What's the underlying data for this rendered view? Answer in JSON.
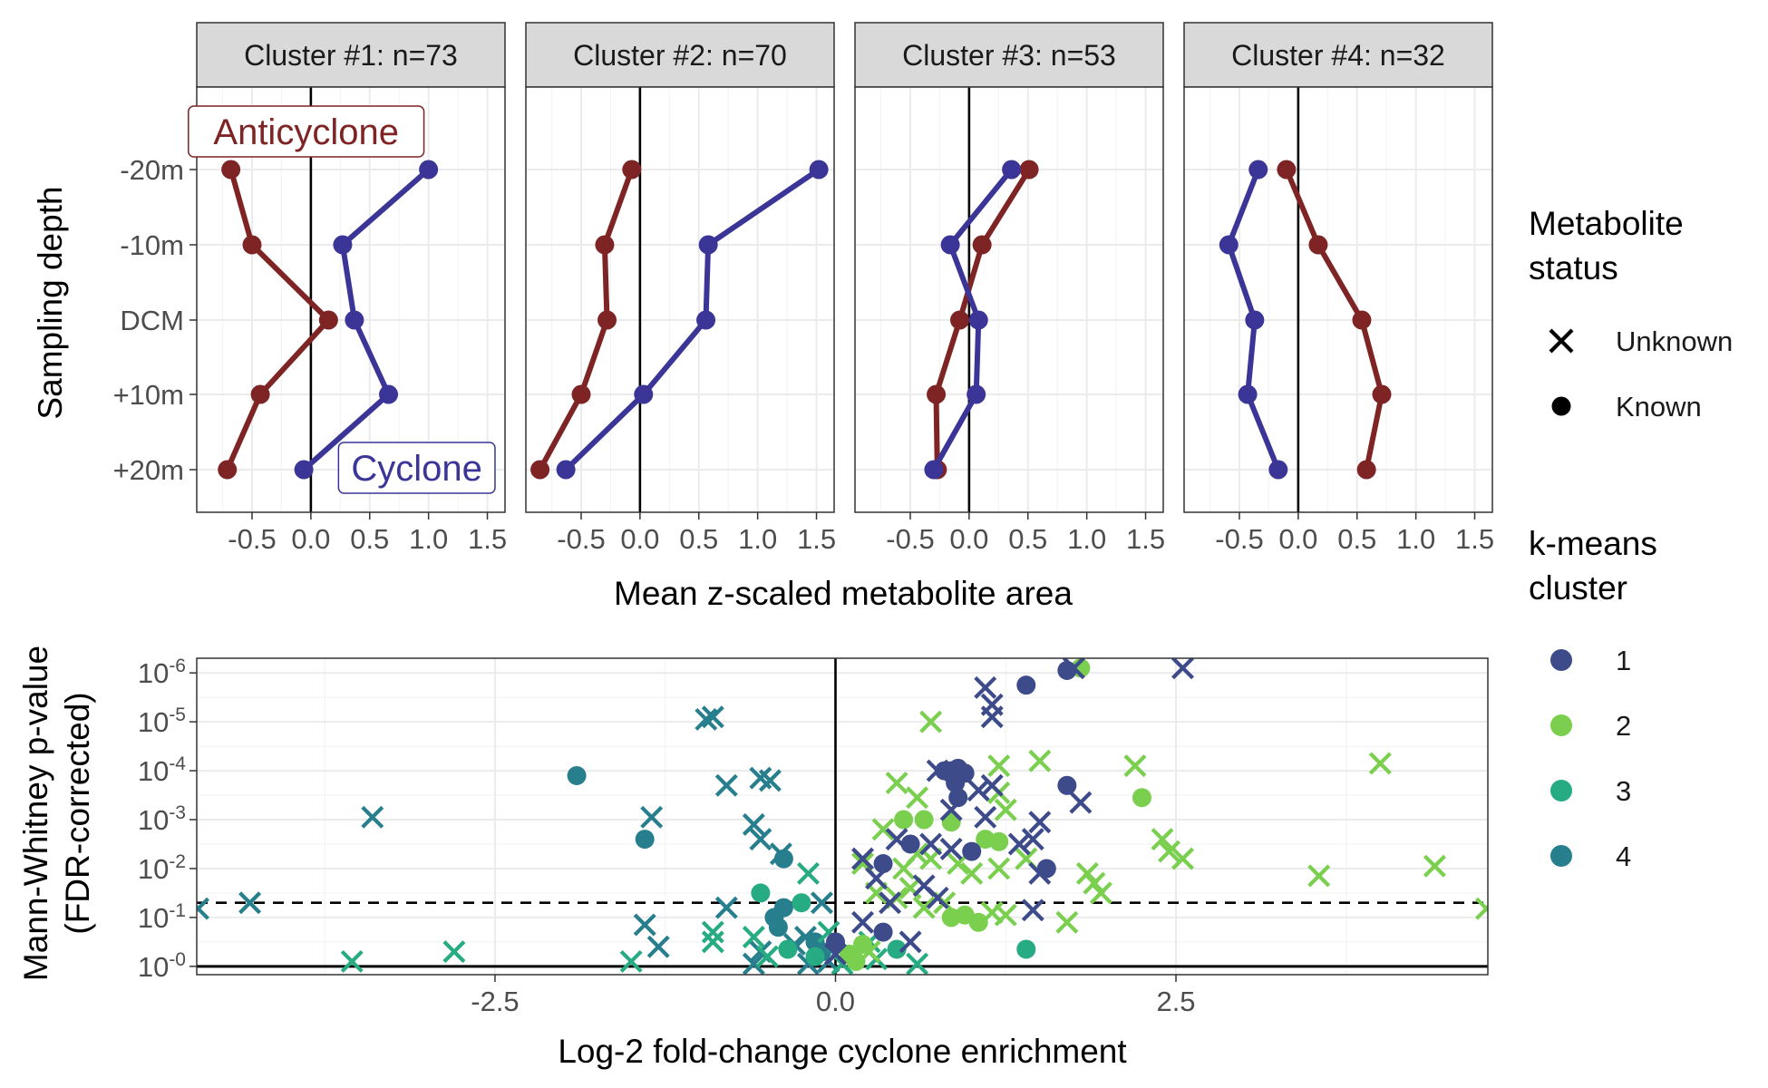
{
  "colors": {
    "anticyclone": "#7F2424",
    "cyclone": "#3A3596",
    "cluster1": "#3D4B8A",
    "cluster2": "#7ACF4F",
    "cluster3": "#27AB82",
    "cluster4": "#277F8E",
    "strip_fill": "#D9D9D9",
    "grid_major": "#EBEBEB",
    "panel_border": "#333333"
  },
  "legend": {
    "status_title_line1": "Metabolite",
    "status_title_line2": "status",
    "status_items": [
      {
        "label": "Unknown",
        "shape": "cross"
      },
      {
        "label": "Known",
        "shape": "circle"
      }
    ],
    "cluster_title_line1": "k-means",
    "cluster_title_line2": "cluster",
    "cluster_items": [
      {
        "label": "1",
        "color": "#3D4B8A"
      },
      {
        "label": "2",
        "color": "#7ACF4F"
      },
      {
        "label": "3",
        "color": "#27AB82"
      },
      {
        "label": "4",
        "color": "#277F8E"
      }
    ]
  },
  "chart_data": [
    {
      "type": "line",
      "layout": "faceted",
      "ylabel": "Sampling depth",
      "xlabel": "Mean z-scaled metabolite area",
      "y_categories": [
        "-20m",
        "-10m",
        "DCM",
        "+10m",
        "+20m"
      ],
      "x_ticks": [
        "-0.5",
        "0.0",
        "0.5",
        "1.0",
        "1.5"
      ],
      "x_tick_values": [
        -0.5,
        0.0,
        0.5,
        1.0,
        1.5
      ],
      "xlim": [
        -0.97,
        1.65
      ],
      "annotations": [
        {
          "text": "Anticyclone",
          "facet": 0,
          "x": -0.04,
          "y": "-20m",
          "series": "Anticyclone"
        },
        {
          "text": "Cyclone",
          "facet": 0,
          "x": 0.9,
          "y": "+20m",
          "series": "Cyclone"
        }
      ],
      "facets": [
        {
          "label": "Cluster #1: n=73",
          "series": [
            {
              "key": "Anticyclone",
              "values": [
                -0.68,
                -0.5,
                0.15,
                -0.43,
                -0.71
              ]
            },
            {
              "key": "Cyclone",
              "values": [
                1.0,
                0.27,
                0.37,
                0.66,
                -0.06
              ]
            }
          ]
        },
        {
          "label": "Cluster #2: n=70",
          "series": [
            {
              "key": "Anticyclone",
              "values": [
                -0.07,
                -0.3,
                -0.28,
                -0.5,
                -0.85
              ]
            },
            {
              "key": "Cyclone",
              "values": [
                1.52,
                0.58,
                0.56,
                0.03,
                -0.63
              ]
            }
          ]
        },
        {
          "label": "Cluster #3: n=53",
          "series": [
            {
              "key": "Anticyclone",
              "values": [
                0.51,
                0.11,
                -0.08,
                -0.28,
                -0.27
              ]
            },
            {
              "key": "Cyclone",
              "values": [
                0.36,
                -0.16,
                0.08,
                0.06,
                -0.3
              ]
            }
          ]
        },
        {
          "label": "Cluster #4: n=32",
          "series": [
            {
              "key": "Anticyclone",
              "values": [
                -0.1,
                0.17,
                0.54,
                0.71,
                0.58
              ]
            },
            {
              "key": "Cyclone",
              "values": [
                -0.34,
                -0.59,
                -0.37,
                -0.43,
                -0.17
              ]
            }
          ]
        }
      ]
    },
    {
      "type": "scatter",
      "xlabel": "Log-2 fold-change cyclone enrichment",
      "ylabel_line1": "Mann-Whitney p-value",
      "ylabel_line2": "(FDR-corrected)",
      "x_ticks": [
        "-2.5",
        "0.0",
        "2.5"
      ],
      "x_tick_values": [
        -2.5,
        0.0,
        2.5
      ],
      "xlim": [
        -4.69,
        4.79
      ],
      "y_ticks": [
        {
          "base": "10",
          "exp": "-6",
          "value": 6
        },
        {
          "base": "10",
          "exp": "-5",
          "value": 5
        },
        {
          "base": "10",
          "exp": "-4",
          "value": 4
        },
        {
          "base": "10",
          "exp": "-3",
          "value": 3
        },
        {
          "base": "10",
          "exp": "-2",
          "value": 2
        },
        {
          "base": "10",
          "exp": "-1",
          "value": 1
        },
        {
          "base": "10",
          "exp": "-0",
          "value": 0
        }
      ],
      "y_scale": "-log10(p)",
      "ylim": [
        -0.17,
        6.3
      ],
      "threshold_line": 1.3,
      "reference_line": 0,
      "points": [
        {
          "x": -4.68,
          "y": 1.18,
          "c": 4,
          "s": "x"
        },
        {
          "x": -4.3,
          "y": 1.3,
          "c": 4,
          "s": "x"
        },
        {
          "x": -3.4,
          "y": 3.05,
          "c": 4,
          "s": "x"
        },
        {
          "x": -1.9,
          "y": 3.9,
          "c": 4,
          "s": "o"
        },
        {
          "x": -1.35,
          "y": 3.05,
          "c": 4,
          "s": "x"
        },
        {
          "x": -1.4,
          "y": 2.6,
          "c": 4,
          "s": "o"
        },
        {
          "x": -1.3,
          "y": 0.4,
          "c": 4,
          "s": "x"
        },
        {
          "x": -1.4,
          "y": 0.85,
          "c": 4,
          "s": "x"
        },
        {
          "x": -0.9,
          "y": 5.1,
          "c": 4,
          "s": "x"
        },
        {
          "x": -0.95,
          "y": 5.05,
          "c": 4,
          "s": "x"
        },
        {
          "x": -0.8,
          "y": 3.7,
          "c": 4,
          "s": "x"
        },
        {
          "x": -0.55,
          "y": 3.85,
          "c": 4,
          "s": "x"
        },
        {
          "x": -0.48,
          "y": 3.8,
          "c": 4,
          "s": "x"
        },
        {
          "x": -0.6,
          "y": 2.9,
          "c": 4,
          "s": "x"
        },
        {
          "x": -0.55,
          "y": 2.6,
          "c": 4,
          "s": "x"
        },
        {
          "x": -0.4,
          "y": 2.3,
          "c": 4,
          "s": "x"
        },
        {
          "x": -0.38,
          "y": 2.2,
          "c": 4,
          "s": "o"
        },
        {
          "x": -0.8,
          "y": 1.2,
          "c": 4,
          "s": "x"
        },
        {
          "x": -0.45,
          "y": 1.0,
          "c": 4,
          "s": "o"
        },
        {
          "x": -0.42,
          "y": 0.8,
          "c": 4,
          "s": "o"
        },
        {
          "x": -0.38,
          "y": 1.2,
          "c": 4,
          "s": "o"
        },
        {
          "x": -0.3,
          "y": 0.45,
          "c": 4,
          "s": "x"
        },
        {
          "x": -0.22,
          "y": 0.6,
          "c": 4,
          "s": "x"
        },
        {
          "x": -0.15,
          "y": 0.5,
          "c": 4,
          "s": "o"
        },
        {
          "x": -0.1,
          "y": 0.3,
          "c": 4,
          "s": "o"
        },
        {
          "x": -0.2,
          "y": 0.05,
          "c": 4,
          "s": "x"
        },
        {
          "x": -0.05,
          "y": 0.1,
          "c": 4,
          "s": "x"
        },
        {
          "x": -0.6,
          "y": 0.05,
          "c": 4,
          "s": "x"
        },
        {
          "x": -0.55,
          "y": 0.3,
          "c": 4,
          "s": "x"
        },
        {
          "x": -0.1,
          "y": 1.3,
          "c": 4,
          "s": "x"
        },
        {
          "x": -3.55,
          "y": 0.1,
          "c": 3,
          "s": "x"
        },
        {
          "x": -2.8,
          "y": 0.3,
          "c": 3,
          "s": "x"
        },
        {
          "x": -1.5,
          "y": 0.1,
          "c": 3,
          "s": "x"
        },
        {
          "x": -0.2,
          "y": 1.9,
          "c": 3,
          "s": "x"
        },
        {
          "x": -0.55,
          "y": 1.5,
          "c": 3,
          "s": "o"
        },
        {
          "x": -0.25,
          "y": 1.3,
          "c": 3,
          "s": "o"
        },
        {
          "x": -0.9,
          "y": 0.7,
          "c": 3,
          "s": "x"
        },
        {
          "x": -0.9,
          "y": 0.5,
          "c": 3,
          "s": "x"
        },
        {
          "x": -0.6,
          "y": 0.6,
          "c": 3,
          "s": "x"
        },
        {
          "x": -0.5,
          "y": 0.2,
          "c": 3,
          "s": "x"
        },
        {
          "x": -0.35,
          "y": 0.35,
          "c": 3,
          "s": "o"
        },
        {
          "x": -0.15,
          "y": 0.2,
          "c": 3,
          "s": "o"
        },
        {
          "x": 0.0,
          "y": 0.45,
          "c": 3,
          "s": "o"
        },
        {
          "x": 0.1,
          "y": 0.25,
          "c": 3,
          "s": "o"
        },
        {
          "x": 0.05,
          "y": 0.05,
          "c": 3,
          "s": "x"
        },
        {
          "x": 0.25,
          "y": 0.5,
          "c": 3,
          "s": "x"
        },
        {
          "x": 0.3,
          "y": 0.15,
          "c": 3,
          "s": "x"
        },
        {
          "x": 0.6,
          "y": 0.05,
          "c": 3,
          "s": "x"
        },
        {
          "x": 1.4,
          "y": 0.35,
          "c": 3,
          "s": "o"
        },
        {
          "x": 0.45,
          "y": 0.35,
          "c": 3,
          "s": "o"
        },
        {
          "x": -0.05,
          "y": 0.7,
          "c": 3,
          "s": "x"
        },
        {
          "x": 1.8,
          "y": 6.1,
          "c": 2,
          "s": "o"
        },
        {
          "x": 0.7,
          "y": 5.0,
          "c": 2,
          "s": "x"
        },
        {
          "x": 1.2,
          "y": 4.1,
          "c": 2,
          "s": "x"
        },
        {
          "x": 1.5,
          "y": 4.2,
          "c": 2,
          "s": "x"
        },
        {
          "x": 2.2,
          "y": 4.1,
          "c": 2,
          "s": "x"
        },
        {
          "x": 4.0,
          "y": 4.15,
          "c": 2,
          "s": "x"
        },
        {
          "x": 2.25,
          "y": 3.45,
          "c": 2,
          "s": "o"
        },
        {
          "x": 0.45,
          "y": 3.75,
          "c": 2,
          "s": "x"
        },
        {
          "x": 0.6,
          "y": 3.45,
          "c": 2,
          "s": "x"
        },
        {
          "x": 1.2,
          "y": 3.55,
          "c": 2,
          "s": "x"
        },
        {
          "x": 1.25,
          "y": 3.2,
          "c": 2,
          "s": "x"
        },
        {
          "x": 0.5,
          "y": 3.0,
          "c": 2,
          "s": "o"
        },
        {
          "x": 0.65,
          "y": 3.0,
          "c": 2,
          "s": "o"
        },
        {
          "x": 0.85,
          "y": 2.95,
          "c": 2,
          "s": "o"
        },
        {
          "x": 0.35,
          "y": 2.8,
          "c": 2,
          "s": "x"
        },
        {
          "x": 1.1,
          "y": 2.6,
          "c": 2,
          "s": "o"
        },
        {
          "x": 1.2,
          "y": 2.55,
          "c": 2,
          "s": "o"
        },
        {
          "x": 0.6,
          "y": 2.3,
          "c": 2,
          "s": "x"
        },
        {
          "x": 0.2,
          "y": 2.1,
          "c": 2,
          "s": "x"
        },
        {
          "x": 0.5,
          "y": 2.0,
          "c": 2,
          "s": "x"
        },
        {
          "x": 0.7,
          "y": 2.2,
          "c": 2,
          "s": "x"
        },
        {
          "x": 0.9,
          "y": 2.1,
          "c": 2,
          "s": "x"
        },
        {
          "x": 1.0,
          "y": 1.9,
          "c": 2,
          "s": "x"
        },
        {
          "x": 1.2,
          "y": 2.0,
          "c": 2,
          "s": "x"
        },
        {
          "x": 1.4,
          "y": 2.2,
          "c": 2,
          "s": "x"
        },
        {
          "x": 2.4,
          "y": 2.6,
          "c": 2,
          "s": "x"
        },
        {
          "x": 2.45,
          "y": 2.35,
          "c": 2,
          "s": "x"
        },
        {
          "x": 2.55,
          "y": 2.2,
          "c": 2,
          "s": "x"
        },
        {
          "x": 1.85,
          "y": 1.9,
          "c": 2,
          "s": "x"
        },
        {
          "x": 1.9,
          "y": 1.7,
          "c": 2,
          "s": "x"
        },
        {
          "x": 1.95,
          "y": 1.5,
          "c": 2,
          "s": "x"
        },
        {
          "x": 3.55,
          "y": 1.85,
          "c": 2,
          "s": "x"
        },
        {
          "x": 4.4,
          "y": 2.05,
          "c": 2,
          "s": "x"
        },
        {
          "x": 4.78,
          "y": 1.18,
          "c": 2,
          "s": "x"
        },
        {
          "x": 0.3,
          "y": 1.5,
          "c": 2,
          "s": "x"
        },
        {
          "x": 0.45,
          "y": 1.4,
          "c": 2,
          "s": "x"
        },
        {
          "x": 0.55,
          "y": 1.6,
          "c": 2,
          "s": "x"
        },
        {
          "x": 0.65,
          "y": 1.2,
          "c": 2,
          "s": "x"
        },
        {
          "x": 0.8,
          "y": 1.3,
          "c": 2,
          "s": "x"
        },
        {
          "x": 0.85,
          "y": 1.0,
          "c": 2,
          "s": "o"
        },
        {
          "x": 0.95,
          "y": 1.05,
          "c": 2,
          "s": "o"
        },
        {
          "x": 1.05,
          "y": 0.9,
          "c": 2,
          "s": "o"
        },
        {
          "x": 1.15,
          "y": 1.1,
          "c": 2,
          "s": "x"
        },
        {
          "x": 1.25,
          "y": 1.05,
          "c": 2,
          "s": "x"
        },
        {
          "x": 1.7,
          "y": 0.9,
          "c": 2,
          "s": "x"
        },
        {
          "x": 0.2,
          "y": 0.45,
          "c": 2,
          "s": "o"
        },
        {
          "x": 0.15,
          "y": 0.1,
          "c": 2,
          "s": "o"
        },
        {
          "x": 0.25,
          "y": 0.3,
          "c": 2,
          "s": "x"
        },
        {
          "x": 0.1,
          "y": 0.25,
          "c": 2,
          "s": "o"
        },
        {
          "x": 1.75,
          "y": 6.1,
          "c": 1,
          "s": "x"
        },
        {
          "x": 2.55,
          "y": 6.1,
          "c": 1,
          "s": "x"
        },
        {
          "x": 1.7,
          "y": 6.05,
          "c": 1,
          "s": "o"
        },
        {
          "x": 1.4,
          "y": 5.75,
          "c": 1,
          "s": "o"
        },
        {
          "x": 1.1,
          "y": 5.7,
          "c": 1,
          "s": "x"
        },
        {
          "x": 1.15,
          "y": 5.35,
          "c": 1,
          "s": "x"
        },
        {
          "x": 1.15,
          "y": 5.1,
          "c": 1,
          "s": "x"
        },
        {
          "x": 0.75,
          "y": 4.0,
          "c": 1,
          "s": "x"
        },
        {
          "x": 0.8,
          "y": 4.0,
          "c": 1,
          "s": "o"
        },
        {
          "x": 0.85,
          "y": 4.0,
          "c": 1,
          "s": "o"
        },
        {
          "x": 0.9,
          "y": 4.05,
          "c": 1,
          "s": "o"
        },
        {
          "x": 0.95,
          "y": 3.95,
          "c": 1,
          "s": "o"
        },
        {
          "x": 0.88,
          "y": 3.75,
          "c": 1,
          "s": "o"
        },
        {
          "x": 0.9,
          "y": 3.45,
          "c": 1,
          "s": "o"
        },
        {
          "x": 1.05,
          "y": 3.6,
          "c": 1,
          "s": "x"
        },
        {
          "x": 1.15,
          "y": 3.7,
          "c": 1,
          "s": "x"
        },
        {
          "x": 1.7,
          "y": 3.7,
          "c": 1,
          "s": "o"
        },
        {
          "x": 1.8,
          "y": 3.35,
          "c": 1,
          "s": "x"
        },
        {
          "x": 0.85,
          "y": 3.2,
          "c": 1,
          "s": "x"
        },
        {
          "x": 1.1,
          "y": 3.05,
          "c": 1,
          "s": "x"
        },
        {
          "x": 1.5,
          "y": 2.95,
          "c": 1,
          "s": "x"
        },
        {
          "x": 0.45,
          "y": 2.6,
          "c": 1,
          "s": "x"
        },
        {
          "x": 0.55,
          "y": 2.5,
          "c": 1,
          "s": "o"
        },
        {
          "x": 0.7,
          "y": 2.5,
          "c": 1,
          "s": "x"
        },
        {
          "x": 0.85,
          "y": 2.4,
          "c": 1,
          "s": "x"
        },
        {
          "x": 1.0,
          "y": 2.35,
          "c": 1,
          "s": "o"
        },
        {
          "x": 1.35,
          "y": 2.5,
          "c": 1,
          "s": "x"
        },
        {
          "x": 1.45,
          "y": 2.6,
          "c": 1,
          "s": "x"
        },
        {
          "x": 1.55,
          "y": 2.0,
          "c": 1,
          "s": "o"
        },
        {
          "x": 1.5,
          "y": 1.9,
          "c": 1,
          "s": "x"
        },
        {
          "x": 0.2,
          "y": 2.2,
          "c": 1,
          "s": "x"
        },
        {
          "x": 0.35,
          "y": 2.1,
          "c": 1,
          "s": "o"
        },
        {
          "x": 0.3,
          "y": 1.8,
          "c": 1,
          "s": "x"
        },
        {
          "x": 0.65,
          "y": 1.65,
          "c": 1,
          "s": "x"
        },
        {
          "x": 0.4,
          "y": 1.3,
          "c": 1,
          "s": "x"
        },
        {
          "x": 0.75,
          "y": 1.4,
          "c": 1,
          "s": "x"
        },
        {
          "x": 1.45,
          "y": 1.15,
          "c": 1,
          "s": "x"
        },
        {
          "x": 0.2,
          "y": 0.9,
          "c": 1,
          "s": "x"
        },
        {
          "x": 0.35,
          "y": 0.7,
          "c": 1,
          "s": "o"
        },
        {
          "x": 0.55,
          "y": 0.5,
          "c": 1,
          "s": "x"
        },
        {
          "x": 0.0,
          "y": 0.25,
          "c": 1,
          "s": "x"
        },
        {
          "x": 0.0,
          "y": 0.5,
          "c": 1,
          "s": "o"
        }
      ]
    }
  ]
}
